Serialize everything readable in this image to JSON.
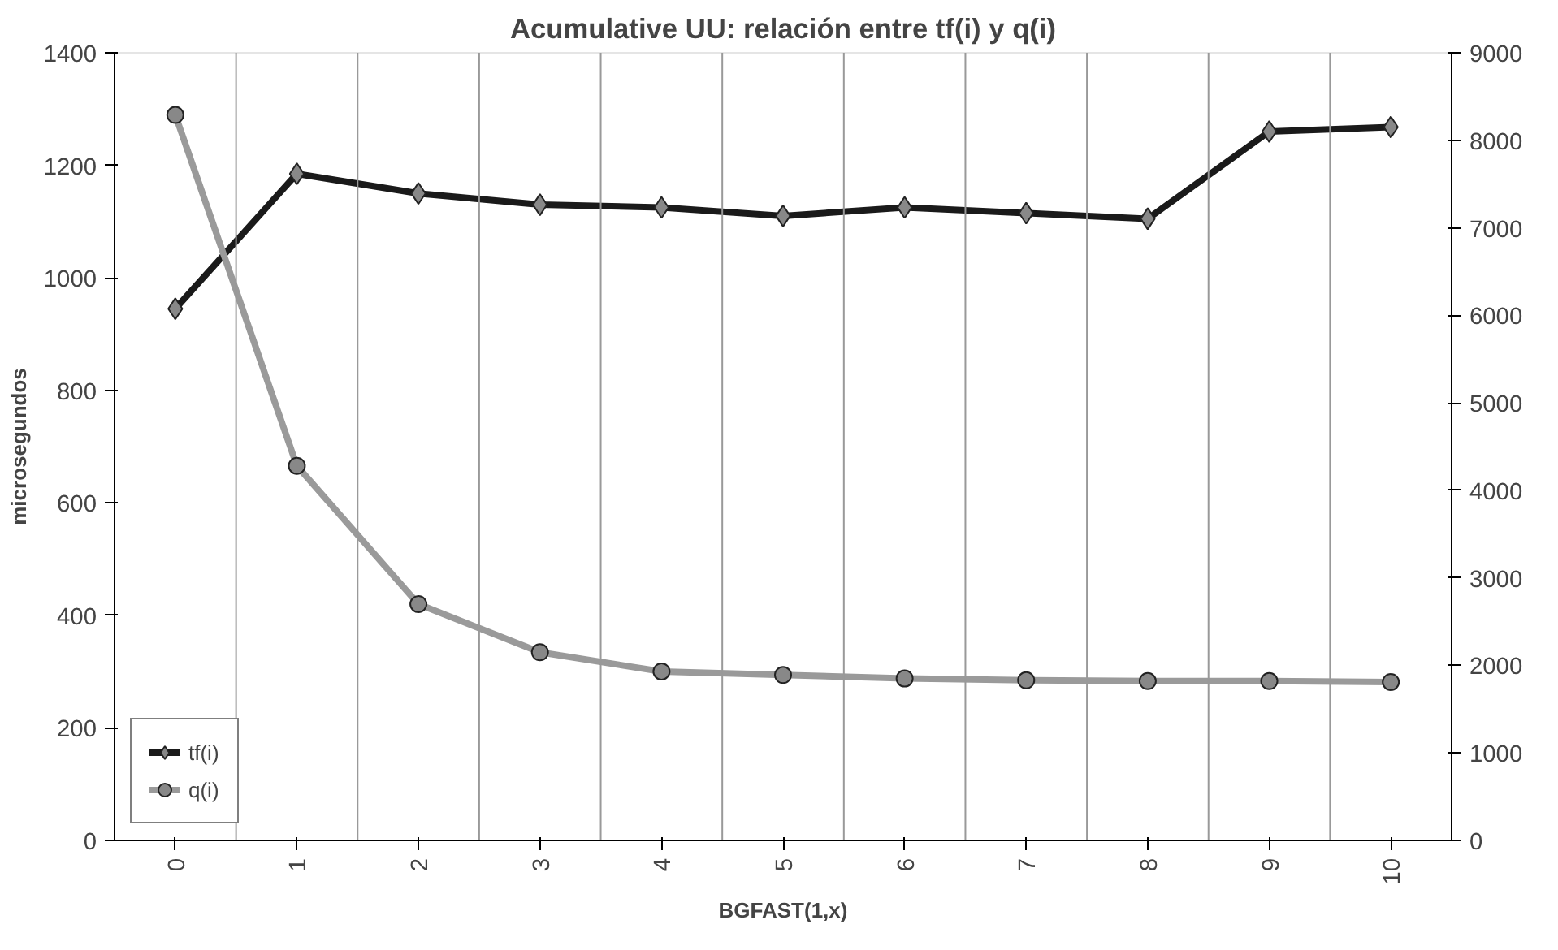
{
  "chart_data": {
    "type": "line",
    "title": "Acumulative UU: relación entre tf(i) y q(i)",
    "xlabel": "BGFAST(1,x)",
    "ylabel": "microsegundos",
    "categories": [
      "0",
      "1",
      "2",
      "3",
      "4",
      "5",
      "6",
      "7",
      "8",
      "9",
      "10"
    ],
    "series": [
      {
        "name": "tf(i)",
        "color": "#1a1a1a",
        "marker": "diamond",
        "values": [
          945,
          1185,
          1150,
          1130,
          1125,
          1110,
          1125,
          1115,
          1105,
          1260,
          1268
        ]
      },
      {
        "name": "q(i)",
        "color": "#9a9a9a",
        "marker": "circle",
        "axis": "y2",
        "values": [
          8290,
          4280,
          2700,
          2150,
          1930,
          1890,
          1850,
          1830,
          1820,
          1820,
          1810
        ]
      }
    ],
    "ylim": [
      0,
      1400
    ],
    "yticks": [
      0,
      200,
      400,
      600,
      800,
      1000,
      1200,
      1400
    ],
    "y2lim": [
      0,
      9000
    ],
    "y2ticks": [
      0,
      1000,
      2000,
      3000,
      4000,
      5000,
      6000,
      7000,
      8000,
      9000
    ],
    "grid": "x",
    "legend": "bottom left"
  }
}
